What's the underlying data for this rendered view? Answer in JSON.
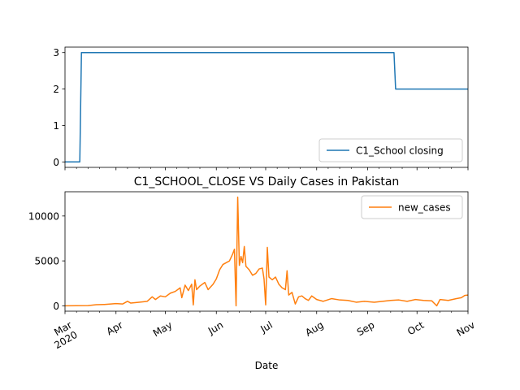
{
  "chart_data": [
    {
      "type": "line",
      "title": "",
      "xlabel": "",
      "ylabel": "",
      "ylim": [
        -0.15,
        3.15
      ],
      "yticks": [
        0,
        1,
        2,
        3
      ],
      "legend": "lower-right",
      "series": [
        {
          "name": "C1_School closing",
          "color": "#1f77b4",
          "points": [
            [
              "2020-03-01",
              0
            ],
            [
              "2020-03-10",
              0
            ],
            [
              "2020-03-11",
              3
            ],
            [
              "2020-09-17",
              3
            ],
            [
              "2020-09-18",
              2
            ],
            [
              "2020-11-01",
              2
            ]
          ]
        }
      ]
    },
    {
      "type": "line",
      "title": "C1_SCHOOL_CLOSE VS Daily Cases in Pakistan",
      "xlabel": "Date",
      "ylabel": "",
      "ylim": [
        -600,
        12700
      ],
      "yticks": [
        0,
        5000,
        10000
      ],
      "legend": "top-right",
      "x_tick_labels": [
        "Mar\n2020",
        "Apr",
        "May",
        "Jun",
        "Jul",
        "Aug",
        "Sep",
        "Oct",
        "Nov"
      ],
      "series": [
        {
          "name": "new_cases",
          "color": "#ff7f0e",
          "points": [
            [
              "2020-03-01",
              0
            ],
            [
              "2020-03-15",
              20
            ],
            [
              "2020-03-20",
              120
            ],
            [
              "2020-03-25",
              150
            ],
            [
              "2020-04-01",
              250
            ],
            [
              "2020-04-05",
              200
            ],
            [
              "2020-04-08",
              500
            ],
            [
              "2020-04-10",
              300
            ],
            [
              "2020-04-15",
              400
            ],
            [
              "2020-04-20",
              500
            ],
            [
              "2020-04-23",
              1000
            ],
            [
              "2020-04-25",
              700
            ],
            [
              "2020-04-28",
              1100
            ],
            [
              "2020-05-01",
              1000
            ],
            [
              "2020-05-04",
              1400
            ],
            [
              "2020-05-07",
              1600
            ],
            [
              "2020-05-10",
              2000
            ],
            [
              "2020-05-11",
              900
            ],
            [
              "2020-05-13",
              2300
            ],
            [
              "2020-05-15",
              1700
            ],
            [
              "2020-05-17",
              2400
            ],
            [
              "2020-05-18",
              100
            ],
            [
              "2020-05-19",
              2900
            ],
            [
              "2020-05-20",
              1800
            ],
            [
              "2020-05-22",
              2200
            ],
            [
              "2020-05-25",
              2600
            ],
            [
              "2020-05-27",
              1800
            ],
            [
              "2020-05-30",
              2400
            ],
            [
              "2020-06-01",
              3000
            ],
            [
              "2020-06-03",
              4000
            ],
            [
              "2020-06-05",
              4600
            ],
            [
              "2020-06-07",
              4800
            ],
            [
              "2020-06-09",
              5000
            ],
            [
              "2020-06-11",
              5800
            ],
            [
              "2020-06-12",
              6300
            ],
            [
              "2020-06-13",
              0
            ],
            [
              "2020-06-14",
              12100
            ],
            [
              "2020-06-15",
              4500
            ],
            [
              "2020-06-16",
              5500
            ],
            [
              "2020-06-17",
              4800
            ],
            [
              "2020-06-18",
              6600
            ],
            [
              "2020-06-19",
              4400
            ],
            [
              "2020-06-21",
              4000
            ],
            [
              "2020-06-23",
              3400
            ],
            [
              "2020-06-25",
              3600
            ],
            [
              "2020-06-27",
              4100
            ],
            [
              "2020-06-29",
              4200
            ],
            [
              "2020-06-30",
              3000
            ],
            [
              "2020-07-01",
              100
            ],
            [
              "2020-07-02",
              6500
            ],
            [
              "2020-07-03",
              3200
            ],
            [
              "2020-07-05",
              2900
            ],
            [
              "2020-07-07",
              3200
            ],
            [
              "2020-07-09",
              2400
            ],
            [
              "2020-07-11",
              2000
            ],
            [
              "2020-07-13",
              1800
            ],
            [
              "2020-07-14",
              3900
            ],
            [
              "2020-07-15",
              1200
            ],
            [
              "2020-07-17",
              1500
            ],
            [
              "2020-07-19",
              200
            ],
            [
              "2020-07-21",
              1000
            ],
            [
              "2020-07-23",
              1100
            ],
            [
              "2020-07-25",
              800
            ],
            [
              "2020-07-27",
              600
            ],
            [
              "2020-07-29",
              1100
            ],
            [
              "2020-08-01",
              700
            ],
            [
              "2020-08-05",
              500
            ],
            [
              "2020-08-10",
              800
            ],
            [
              "2020-08-15",
              650
            ],
            [
              "2020-08-20",
              600
            ],
            [
              "2020-08-25",
              400
            ],
            [
              "2020-08-30",
              500
            ],
            [
              "2020-09-05",
              400
            ],
            [
              "2020-09-10",
              500
            ],
            [
              "2020-09-15",
              600
            ],
            [
              "2020-09-20",
              650
            ],
            [
              "2020-09-25",
              500
            ],
            [
              "2020-09-30",
              700
            ],
            [
              "2020-10-05",
              600
            ],
            [
              "2020-10-10",
              550
            ],
            [
              "2020-10-13",
              0
            ],
            [
              "2020-10-15",
              700
            ],
            [
              "2020-10-20",
              600
            ],
            [
              "2020-10-25",
              800
            ],
            [
              "2020-10-28",
              900
            ],
            [
              "2020-10-30",
              1150
            ],
            [
              "2020-11-01",
              1200
            ]
          ]
        }
      ]
    }
  ]
}
